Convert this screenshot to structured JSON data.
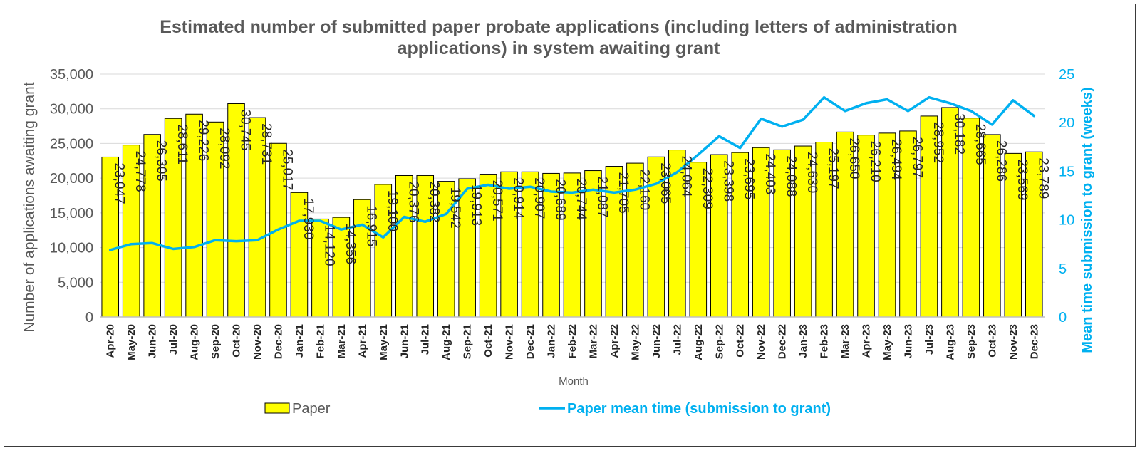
{
  "chart_data": {
    "type": "bar",
    "title": "Estimated number of submitted paper probate applications (including letters of administration applications) in system awaiting grant",
    "title_lines": [
      "Estimated number of submitted paper probate applications (including letters of administration",
      "applications) in system awaiting grant"
    ],
    "xlabel": "Month",
    "ylabel": "Number of applications awaiting grant",
    "y2label": "Mean time submission to grant (weeks)",
    "ylim": [
      0,
      35000
    ],
    "y2lim": [
      0,
      25
    ],
    "yticks": [
      "0",
      "5,000",
      "10,000",
      "15,000",
      "20,000",
      "25,000",
      "30,000",
      "35,000"
    ],
    "y2ticks": [
      "0",
      "5",
      "10",
      "15",
      "20",
      "25"
    ],
    "grid": true,
    "legend_position": "bottom",
    "categories": [
      "Apr-20",
      "May-20",
      "Jun-20",
      "Jul-20",
      "Aug-20",
      "Sep-20",
      "Oct-20",
      "Nov-20",
      "Dec-20",
      "Jan-21",
      "Feb-21",
      "Mar-21",
      "Apr-21",
      "May-21",
      "Jun-21",
      "Jul-21",
      "Aug-21",
      "Sep-21",
      "Oct-21",
      "Nov-21",
      "Dec-21",
      "Jan-22",
      "Feb-22",
      "Mar-22",
      "Apr-22",
      "May-22",
      "Jun-22",
      "Jul-22",
      "Aug-22",
      "Sep-22",
      "Oct-22",
      "Nov-22",
      "Dec-22",
      "Jan-23",
      "Feb-23",
      "Mar-23",
      "Apr-23",
      "May-23",
      "Jun-23",
      "Jul-23",
      "Aug-23",
      "Sep-23",
      "Oct-23",
      "Nov-23",
      "Dec-23"
    ],
    "series": [
      {
        "name": "Paper",
        "type": "bar",
        "color": "#ffff00",
        "values": [
          23047,
          24778,
          26305,
          28611,
          29226,
          28092,
          30745,
          28731,
          25017,
          17930,
          14120,
          14356,
          16915,
          19100,
          20376,
          20382,
          19542,
          19913,
          20571,
          20914,
          20907,
          20689,
          20744,
          21087,
          21705,
          22160,
          23065,
          24064,
          22309,
          23398,
          23695,
          24403,
          24088,
          24630,
          25197,
          26650,
          26210,
          26494,
          26797,
          28952,
          30182,
          28665,
          26286,
          23569,
          23789
        ],
        "labels": [
          "23,047",
          "24,778",
          "26,305",
          "28,611",
          "29,226",
          "28,092",
          "30,745",
          "28,731",
          "25,017",
          "17,930",
          "14,120",
          "14,356",
          "16,915",
          "19,100",
          "20,376",
          "20,382",
          "19,542",
          "19,913",
          "20,571",
          "20,914",
          "20,907",
          "20,689",
          "20,744",
          "21,087",
          "21,705",
          "22,160",
          "23,065",
          "24,064",
          "22,309",
          "23,398",
          "23,695",
          "24,403",
          "24,088",
          "24,630",
          "25,197",
          "26,650",
          "26,210",
          "26,494",
          "26,797",
          "28,952",
          "30,182",
          "28,665",
          "26,286",
          "23,569",
          "23,789"
        ]
      },
      {
        "name": "Paper mean time (submission to grant)",
        "type": "line",
        "axis": "secondary",
        "color": "#00b0f0",
        "values": [
          6.9,
          7.5,
          7.6,
          7.0,
          7.2,
          7.9,
          7.8,
          7.9,
          9.0,
          9.9,
          9.9,
          9.0,
          9.5,
          8.2,
          10.3,
          9.8,
          10.6,
          13.2,
          13.6,
          13.2,
          13.4,
          12.9,
          12.8,
          13.1,
          12.8,
          13.1,
          13.7,
          14.9,
          16.7,
          18.6,
          17.4,
          20.4,
          19.6,
          20.3,
          22.6,
          21.2,
          22.0,
          22.4,
          21.2,
          22.6,
          22.0,
          21.2,
          19.8,
          22.3,
          20.7
        ]
      }
    ]
  }
}
